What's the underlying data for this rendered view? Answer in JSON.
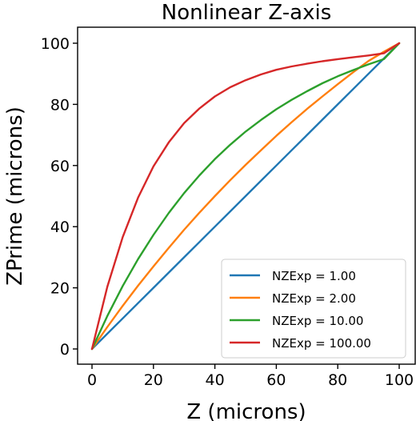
{
  "chart_data": {
    "type": "line",
    "title": "Nonlinear Z-axis",
    "xlabel": "Z (microns)",
    "ylabel": "ZPrime (microns)",
    "xlim": [
      0,
      100
    ],
    "ylim": [
      0,
      100
    ],
    "xticks": [
      "0",
      "20",
      "40",
      "60",
      "80",
      "100"
    ],
    "yticks": [
      "0",
      "20",
      "40",
      "60",
      "80",
      "100"
    ],
    "grid": false,
    "legend_position": "lower-right",
    "x": [
      0,
      5,
      10,
      15,
      20,
      25,
      30,
      35,
      40,
      45,
      50,
      55,
      60,
      65,
      70,
      75,
      80,
      85,
      90,
      95,
      100
    ],
    "series": [
      {
        "name": "NZExp = 1.00",
        "color": "#1f77b4",
        "values": [
          0,
          5,
          10,
          15,
          20,
          25,
          30,
          35,
          40,
          45,
          50,
          55,
          60,
          65,
          70,
          75,
          80,
          85,
          90,
          95,
          100
        ]
      },
      {
        "name": "NZExp = 2.00",
        "color": "#ff7f0e",
        "values": [
          0,
          7.2,
          14.1,
          20.7,
          27.0,
          33.1,
          39.0,
          44.6,
          50.0,
          55.2,
          60.2,
          65.0,
          69.7,
          74.2,
          78.5,
          82.6,
          86.6,
          90.5,
          94.2,
          97.2,
          100
        ]
      },
      {
        "name": "NZExp = 10.00",
        "color": "#2ca02c",
        "values": [
          0,
          10.8,
          20.6,
          29.4,
          37.3,
          44.5,
          51.0,
          56.8,
          62.1,
          66.8,
          71.1,
          74.9,
          78.4,
          81.5,
          84.3,
          86.9,
          89.2,
          91.2,
          93.1,
          94.8,
          100
        ]
      },
      {
        "name": "NZExp = 100.00",
        "color": "#d62728",
        "values": [
          0,
          20.4,
          36.6,
          49.5,
          59.7,
          67.6,
          73.9,
          78.7,
          82.6,
          85.6,
          87.9,
          89.8,
          91.3,
          92.4,
          93.3,
          94.1,
          94.8,
          95.4,
          96.0,
          96.7,
          100
        ]
      }
    ]
  }
}
